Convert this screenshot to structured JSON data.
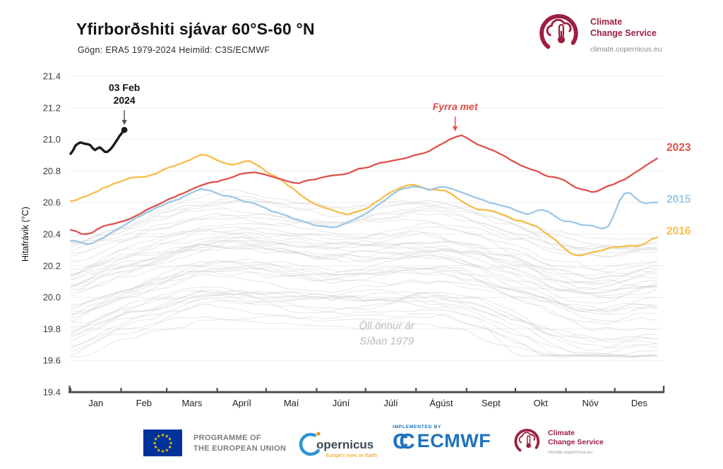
{
  "header": {
    "title": "Yfirborðshiti sjávar 60°S-60 °N",
    "subtitle": "Gögn: ERA5 1979-2024 Heimild: C3S/ECMWF"
  },
  "logo_c3s": {
    "line1": "Climate",
    "line2": "Change Service",
    "url": "climate.copernicus.eu",
    "brand_color": "#9c2040"
  },
  "chart_data": {
    "type": "line",
    "ylabel": "Hitafrávik (°C)",
    "ylim": [
      19.4,
      21.4
    ],
    "ytick_step": 0.2,
    "grid": true,
    "xtick_labels": [
      "Jan",
      "Feb",
      "Mars",
      "Apríl",
      "Maí",
      "Júní",
      "Júlí",
      "Ágúst",
      "Sept",
      "Okt",
      "Nóv",
      "Des"
    ],
    "month_start_doys": [
      1,
      32,
      60,
      91,
      121,
      152,
      182,
      213,
      244,
      274,
      305,
      335
    ],
    "x_doy": [
      1,
      11,
      21,
      31,
      41,
      51,
      61,
      71,
      81,
      91,
      101,
      111,
      121,
      131,
      141,
      151,
      161,
      171,
      181,
      191,
      201,
      211,
      221,
      231,
      241,
      251,
      261,
      271,
      281,
      291,
      301,
      311,
      321,
      331,
      341,
      351,
      361
    ],
    "series": [
      {
        "name": "2016",
        "color": "#f8bc4a",
        "label_value": 20.42,
        "values": [
          20.61,
          20.64,
          20.69,
          20.73,
          20.76,
          20.78,
          20.82,
          20.86,
          20.9,
          20.87,
          20.84,
          20.86,
          20.8,
          20.74,
          20.66,
          20.6,
          20.56,
          20.53,
          20.56,
          20.62,
          20.68,
          20.72,
          20.68,
          20.67,
          20.6,
          20.56,
          20.54,
          20.5,
          20.47,
          20.42,
          20.34,
          20.26,
          20.28,
          20.31,
          20.33,
          20.33,
          20.38
        ]
      },
      {
        "name": "2015",
        "color": "#9cc7e6",
        "label_value": 20.62,
        "values": [
          20.36,
          20.34,
          20.38,
          20.44,
          20.5,
          20.55,
          20.6,
          20.64,
          20.68,
          20.66,
          20.63,
          20.6,
          20.56,
          20.52,
          20.49,
          20.46,
          20.44,
          20.47,
          20.52,
          20.6,
          20.67,
          20.7,
          20.68,
          20.7,
          20.66,
          20.62,
          20.59,
          20.56,
          20.53,
          20.55,
          20.5,
          20.47,
          20.45,
          20.45,
          20.66,
          20.61,
          20.6
        ]
      },
      {
        "name": "2023",
        "color": "#dd524c",
        "label_value": 20.95,
        "values": [
          20.43,
          20.4,
          20.45,
          20.48,
          20.52,
          20.57,
          20.62,
          20.66,
          20.7,
          20.73,
          20.76,
          20.79,
          20.78,
          20.75,
          20.73,
          20.75,
          20.77,
          20.79,
          20.82,
          20.85,
          20.87,
          20.9,
          20.93,
          20.98,
          21.02,
          20.97,
          20.92,
          20.87,
          20.82,
          20.78,
          20.75,
          20.7,
          20.67,
          20.7,
          20.75,
          20.81,
          20.88
        ]
      },
      {
        "name": "2024",
        "color": "#1a1a1a",
        "end_dot": true,
        "x_doy": [
          1,
          4,
          7,
          10,
          13,
          16,
          19,
          22,
          25,
          28,
          31,
          34
        ],
        "values": [
          20.91,
          20.96,
          20.98,
          20.97,
          20.96,
          20.93,
          20.95,
          20.92,
          20.93,
          20.97,
          21.02,
          21.06
        ]
      }
    ],
    "background": {
      "count": 43,
      "color": "#c9c9c9",
      "opacity": 0.42,
      "seed": 11,
      "offset_min": -0.38,
      "offset_span": 0.72,
      "base": [
        20.02,
        20.05,
        20.09,
        20.13,
        20.16,
        20.19,
        20.22,
        20.25,
        20.27,
        20.28,
        20.28,
        20.27,
        20.26,
        20.25,
        20.24,
        20.23,
        20.22,
        20.22,
        20.22,
        20.23,
        20.24,
        20.25,
        20.25,
        20.24,
        20.22,
        20.2,
        20.17,
        20.14,
        20.11,
        20.07,
        20.04,
        20.02,
        20.01,
        20.01,
        20.02,
        20.04,
        20.05
      ],
      "outlier": {
        "series_index": 3,
        "center_doy": 285,
        "depth": 0.26,
        "width": 26
      },
      "clip": [
        19.63,
        20.7
      ]
    },
    "annotations": [
      {
        "id": "record-2024",
        "lines": [
          "03 Feb",
          "2024"
        ],
        "color": "#111111",
        "arrow": true,
        "arrow_color": "#4d4d4d",
        "italic": false,
        "bold": true,
        "doy": 34,
        "value": 21.06
      },
      {
        "id": "previous-record",
        "lines": [
          "Fyrra met"
        ],
        "color": "#e14b44",
        "arrow": true,
        "arrow_color": "#e14b44",
        "italic": true,
        "bold": true,
        "doy": 237,
        "value": 21.02
      },
      {
        "id": "other-years",
        "lines": [
          "Öll önnur ár",
          "Síðan 1979"
        ],
        "color": "#b9b9b9",
        "arrow": false,
        "italic": true,
        "bold": false,
        "doy": 195,
        "value": 19.8
      }
    ],
    "colors": {
      "grid": "#ededed",
      "axis": "#4d4d4d",
      "tick_label": "#3c3c3c",
      "month_label": "#1f1f1f"
    }
  },
  "footer": {
    "eu_programme_line1": "PROGRAMME OF",
    "eu_programme_line2": "THE EUROPEAN UNION",
    "copernicus_name": "opernicus",
    "copernicus_tagline": "Europe's eyes on Earth",
    "implemented_by": "IMPLEMENTED BY",
    "ecmwf_mark": "CC",
    "ecmwf_name": "ECMWF",
    "c3s_line1": "Climate",
    "c3s_line2": "Change Service",
    "c3s_url": "climate.copernicus.eu"
  }
}
